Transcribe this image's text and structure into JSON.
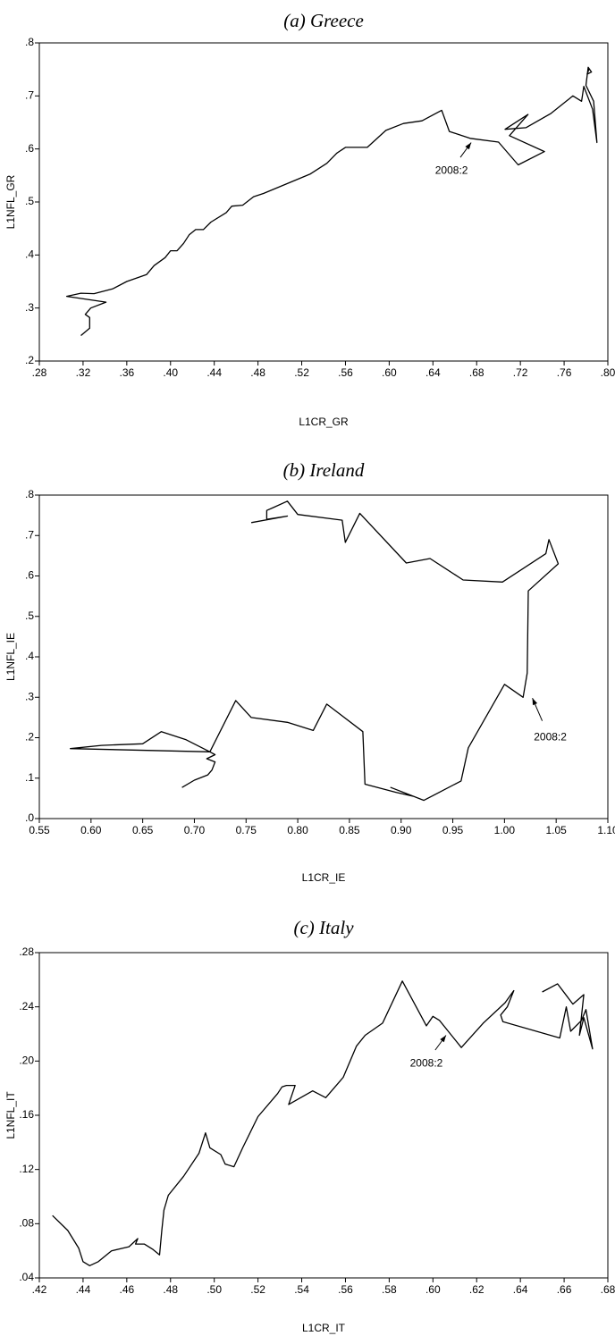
{
  "chart_data": [
    {
      "type": "line",
      "title": "(a) Greece",
      "x_label": "L1CR_GR",
      "y_label": "L1NFL_GR",
      "color": "#000000",
      "xlim": [
        0.28,
        0.8
      ],
      "ylim": [
        0.2,
        0.8
      ],
      "xticks": [
        {
          "value": 0.28,
          "label": ".28"
        },
        {
          "value": 0.32,
          "label": ".32"
        },
        {
          "value": 0.36,
          "label": ".36"
        },
        {
          "value": 0.4,
          "label": ".40"
        },
        {
          "value": 0.44,
          "label": ".44"
        },
        {
          "value": 0.48,
          "label": ".48"
        },
        {
          "value": 0.52,
          "label": ".52"
        },
        {
          "value": 0.56,
          "label": ".56"
        },
        {
          "value": 0.6,
          "label": ".60"
        },
        {
          "value": 0.64,
          "label": ".64"
        },
        {
          "value": 0.68,
          "label": ".68"
        },
        {
          "value": 0.72,
          "label": ".72"
        },
        {
          "value": 0.76,
          "label": ".76"
        },
        {
          "value": 0.8,
          "label": ".80"
        }
      ],
      "yticks": [
        {
          "value": 0.2,
          "label": ".2"
        },
        {
          "value": 0.3,
          "label": ".3"
        },
        {
          "value": 0.4,
          "label": ".4"
        },
        {
          "value": 0.5,
          "label": ".5"
        },
        {
          "value": 0.6,
          "label": ".6"
        },
        {
          "value": 0.7,
          "label": ".7"
        },
        {
          "value": 0.8,
          "label": ".8"
        }
      ],
      "x": [
        0.318,
        0.326,
        0.326,
        0.322,
        0.327,
        0.341,
        0.305,
        0.318,
        0.33,
        0.347,
        0.36,
        0.378,
        0.385,
        0.395,
        0.4,
        0.406,
        0.412,
        0.417,
        0.423,
        0.43,
        0.437,
        0.451,
        0.456,
        0.466,
        0.476,
        0.485,
        0.528,
        0.543,
        0.552,
        0.56,
        0.58,
        0.597,
        0.613,
        0.63,
        0.648,
        0.655,
        0.674,
        0.7,
        0.718,
        0.742,
        0.71,
        0.727,
        0.706,
        0.725,
        0.748,
        0.768,
        0.776,
        0.778,
        0.786,
        0.79,
        0.787,
        0.78,
        0.782,
        0.785,
        0.781,
        0.783
      ],
      "values": [
        0.248,
        0.262,
        0.282,
        0.288,
        0.3,
        0.311,
        0.322,
        0.328,
        0.327,
        0.336,
        0.35,
        0.363,
        0.38,
        0.395,
        0.408,
        0.408,
        0.422,
        0.438,
        0.448,
        0.448,
        0.462,
        0.48,
        0.492,
        0.494,
        0.51,
        0.516,
        0.553,
        0.573,
        0.592,
        0.603,
        0.603,
        0.635,
        0.648,
        0.653,
        0.673,
        0.633,
        0.62,
        0.613,
        0.57,
        0.595,
        0.625,
        0.665,
        0.637,
        0.64,
        0.667,
        0.7,
        0.69,
        0.718,
        0.675,
        0.612,
        0.69,
        0.72,
        0.754,
        0.745,
        0.741,
        0.752
      ],
      "annotation": {
        "text": "2008:2",
        "x": 0.675,
        "y": 0.612
      }
    },
    {
      "type": "line",
      "title": "(b) Ireland",
      "x_label": "L1CR_IE",
      "y_label": "L1NFL_IE",
      "color": "#000000",
      "xlim": [
        0.55,
        1.1
      ],
      "ylim": [
        0.0,
        0.8
      ],
      "xticks": [
        {
          "value": 0.55,
          "label": "0.55"
        },
        {
          "value": 0.6,
          "label": "0.60"
        },
        {
          "value": 0.65,
          "label": "0.65"
        },
        {
          "value": 0.7,
          "label": "0.70"
        },
        {
          "value": 0.75,
          "label": "0.75"
        },
        {
          "value": 0.8,
          "label": "0.80"
        },
        {
          "value": 0.85,
          "label": "0.85"
        },
        {
          "value": 0.9,
          "label": "0.90"
        },
        {
          "value": 0.95,
          "label": "0.95"
        },
        {
          "value": 1.0,
          "label": "1.00"
        },
        {
          "value": 1.05,
          "label": "1.05"
        },
        {
          "value": 1.1,
          "label": "1.10"
        }
      ],
      "yticks": [
        {
          "value": 0.0,
          "label": ".0"
        },
        {
          "value": 0.1,
          "label": ".1"
        },
        {
          "value": 0.2,
          "label": ".2"
        },
        {
          "value": 0.3,
          "label": ".3"
        },
        {
          "value": 0.4,
          "label": ".4"
        },
        {
          "value": 0.5,
          "label": ".5"
        },
        {
          "value": 0.6,
          "label": ".6"
        },
        {
          "value": 0.7,
          "label": ".7"
        },
        {
          "value": 0.8,
          "label": ".8"
        }
      ],
      "x": [
        0.688,
        0.7,
        0.713,
        0.717,
        0.72,
        0.712,
        0.72,
        0.715,
        0.58,
        0.61,
        0.65,
        0.668,
        0.692,
        0.715,
        0.74,
        0.755,
        0.79,
        0.815,
        0.828,
        0.863,
        0.865,
        0.895,
        0.912,
        0.89,
        0.922,
        0.958,
        0.965,
        1.0,
        1.018,
        1.022,
        1.023,
        1.052,
        1.043,
        1.04,
        0.998,
        0.96,
        0.928,
        0.905,
        0.86,
        0.846,
        0.843,
        0.8,
        0.79,
        0.777,
        0.77,
        0.77,
        0.79,
        0.755
      ],
      "values": [
        0.077,
        0.095,
        0.108,
        0.12,
        0.14,
        0.148,
        0.158,
        0.165,
        0.173,
        0.181,
        0.185,
        0.215,
        0.195,
        0.165,
        0.292,
        0.25,
        0.238,
        0.218,
        0.283,
        0.215,
        0.085,
        0.065,
        0.055,
        0.077,
        0.045,
        0.093,
        0.175,
        0.332,
        0.3,
        0.36,
        0.563,
        0.63,
        0.69,
        0.655,
        0.585,
        0.59,
        0.643,
        0.632,
        0.755,
        0.683,
        0.738,
        0.752,
        0.785,
        0.77,
        0.762,
        0.74,
        0.748,
        0.732
      ],
      "annotation": {
        "text": "2008:2",
        "x": 1.027,
        "y": 0.298
      }
    },
    {
      "type": "line",
      "title": "(c) Italy",
      "x_label": "L1CR_IT",
      "y_label": "L1NFL_IT",
      "color": "#000000",
      "xlim": [
        0.42,
        0.68
      ],
      "ylim": [
        0.04,
        0.28
      ],
      "xticks": [
        {
          "value": 0.42,
          "label": ".42"
        },
        {
          "value": 0.44,
          "label": ".44"
        },
        {
          "value": 0.46,
          "label": ".46"
        },
        {
          "value": 0.48,
          "label": ".48"
        },
        {
          "value": 0.5,
          "label": ".50"
        },
        {
          "value": 0.52,
          "label": ".52"
        },
        {
          "value": 0.54,
          "label": ".54"
        },
        {
          "value": 0.56,
          "label": ".56"
        },
        {
          "value": 0.58,
          "label": ".58"
        },
        {
          "value": 0.6,
          "label": ".60"
        },
        {
          "value": 0.62,
          "label": ".62"
        },
        {
          "value": 0.64,
          "label": ".64"
        },
        {
          "value": 0.66,
          "label": ".66"
        },
        {
          "value": 0.68,
          "label": ".68"
        }
      ],
      "yticks": [
        {
          "value": 0.04,
          "label": ".04"
        },
        {
          "value": 0.08,
          "label": ".08"
        },
        {
          "value": 0.12,
          "label": ".12"
        },
        {
          "value": 0.16,
          "label": ".16"
        },
        {
          "value": 0.2,
          "label": ".20"
        },
        {
          "value": 0.24,
          "label": ".24"
        },
        {
          "value": 0.28,
          "label": ".28"
        }
      ],
      "x": [
        0.426,
        0.433,
        0.438,
        0.44,
        0.443,
        0.447,
        0.453,
        0.461,
        0.465,
        0.464,
        0.468,
        0.472,
        0.475,
        0.476,
        0.477,
        0.479,
        0.486,
        0.493,
        0.496,
        0.498,
        0.503,
        0.505,
        0.509,
        0.513,
        0.52,
        0.529,
        0.531,
        0.533,
        0.537,
        0.534,
        0.545,
        0.551,
        0.559,
        0.565,
        0.569,
        0.577,
        0.586,
        0.597,
        0.6,
        0.603,
        0.613,
        0.623,
        0.633,
        0.637,
        0.634,
        0.631,
        0.632,
        0.658,
        0.661,
        0.663,
        0.668,
        0.67,
        0.673,
        0.669,
        0.667,
        0.669,
        0.664,
        0.657,
        0.65
      ],
      "values": [
        0.086,
        0.075,
        0.062,
        0.052,
        0.049,
        0.052,
        0.06,
        0.063,
        0.069,
        0.065,
        0.065,
        0.061,
        0.057,
        0.075,
        0.09,
        0.101,
        0.115,
        0.132,
        0.147,
        0.136,
        0.131,
        0.124,
        0.122,
        0.136,
        0.159,
        0.176,
        0.181,
        0.182,
        0.182,
        0.168,
        0.178,
        0.173,
        0.188,
        0.211,
        0.219,
        0.228,
        0.259,
        0.226,
        0.233,
        0.23,
        0.21,
        0.228,
        0.243,
        0.252,
        0.24,
        0.234,
        0.229,
        0.217,
        0.24,
        0.222,
        0.23,
        0.238,
        0.209,
        0.232,
        0.219,
        0.249,
        0.242,
        0.257,
        0.251
      ],
      "annotation": {
        "text": "2008:2",
        "x": 0.606,
        "y": 0.219
      }
    }
  ]
}
